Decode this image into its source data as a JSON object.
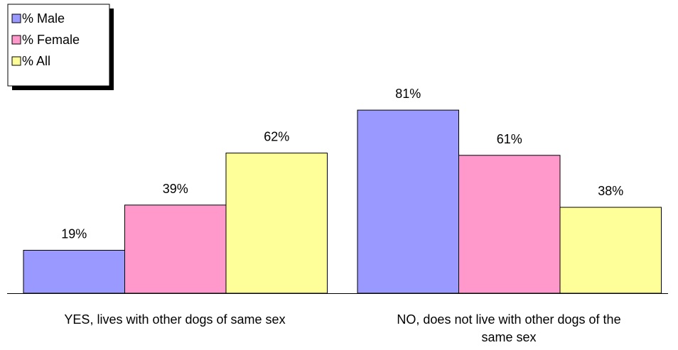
{
  "chart_data": {
    "type": "bar",
    "categories": [
      "YES, lives with other dogs of same sex",
      "NO, does not live with other dogs of the same sex"
    ],
    "series": [
      {
        "name": "% Male",
        "values": [
          19,
          81
        ],
        "labels": [
          "19%",
          "81%"
        ],
        "color": "#9999FF"
      },
      {
        "name": "% Female",
        "values": [
          39,
          61
        ],
        "labels": [
          "39%",
          "61%"
        ],
        "color": "#FF99CC"
      },
      {
        "name": "% All",
        "values": [
          62,
          38
        ],
        "labels": [
          "62%",
          "38%"
        ],
        "color": "#FFFF99"
      }
    ],
    "ylim": [
      0,
      100
    ],
    "grid": false,
    "legend": "top-left"
  }
}
